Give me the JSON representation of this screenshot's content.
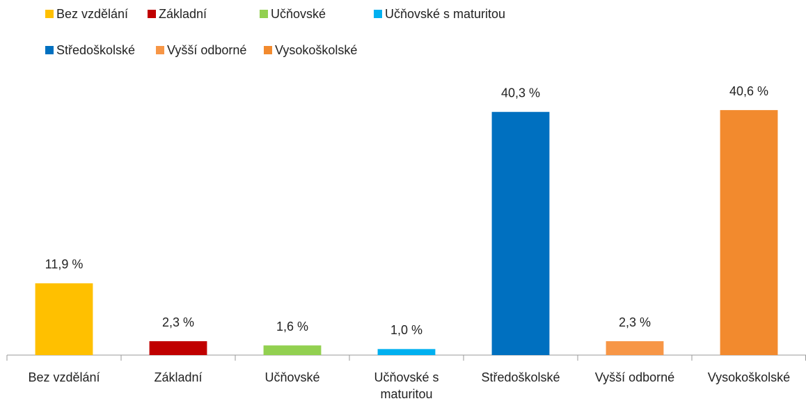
{
  "chart_data": {
    "type": "bar",
    "categories": [
      "Bez vzdělání",
      "Základní",
      "Učňovské",
      "Učňovské s maturitou",
      "Středoškolské",
      "Vyšší odborné",
      "Vysokoškolské"
    ],
    "values": [
      11.9,
      2.3,
      1.6,
      1.0,
      40.3,
      2.3,
      40.6
    ],
    "value_labels": [
      "11,9 %",
      "2,3 %",
      "1,6 %",
      "1,0 %",
      "40,3 %",
      "2,3 %",
      "40,6 %"
    ],
    "colors": [
      "#ffc000",
      "#c00000",
      "#92d050",
      "#00b0f0",
      "#0070c0",
      "#f79646",
      "#f28a2e"
    ],
    "ylim": [
      0,
      45
    ],
    "legend": "top"
  }
}
